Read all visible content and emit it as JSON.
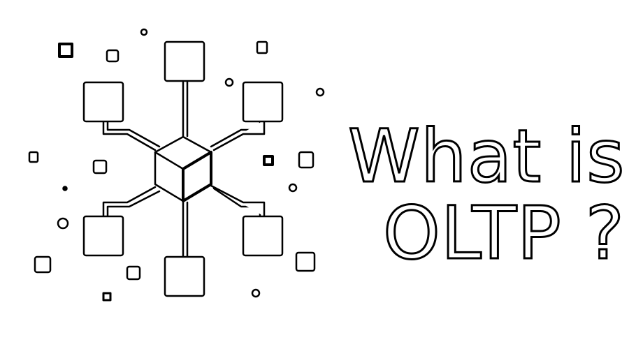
{
  "title": {
    "line1": "What is",
    "line2": "OLTP ?"
  },
  "colors": {
    "background": "#ffffff",
    "stroke": "#000000",
    "fill": "#ffffff"
  },
  "icons": {
    "diagram": "network-hub-icon"
  }
}
